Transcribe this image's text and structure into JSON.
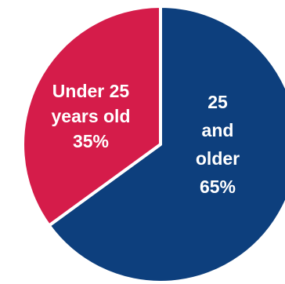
{
  "chart_data": {
    "type": "pie",
    "start_angle_deg": 0,
    "direction": "clockwise",
    "slices": [
      {
        "label_lines": [
          "25",
          "and",
          "older",
          "65%"
        ],
        "value": 65,
        "color": "#0d3f7d"
      },
      {
        "label_lines": [
          "Under 25",
          "years old",
          "35%"
        ],
        "value": 35,
        "color": "#d51c4a"
      }
    ],
    "slice_border_color": "#ffffff"
  }
}
